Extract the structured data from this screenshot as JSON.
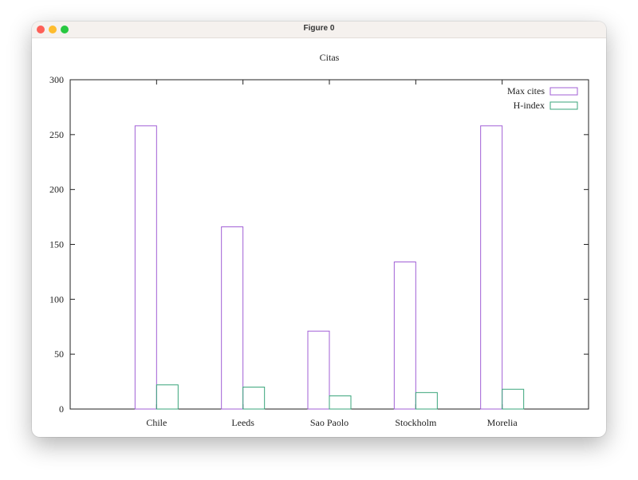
{
  "window": {
    "title": "Figure 0"
  },
  "colors": {
    "max_cites": "#a15fd6",
    "h_index": "#3aa57b",
    "axis": "#222222"
  },
  "chart_data": {
    "type": "bar",
    "title": "Citas",
    "categories": [
      "Chile",
      "Leeds",
      "Sao Paolo",
      "Stockholm",
      "Morelia"
    ],
    "series": [
      {
        "name": "Max cites",
        "values": [
          258,
          166,
          71,
          134,
          258
        ]
      },
      {
        "name": "H-index",
        "values": [
          22,
          20,
          12,
          15,
          18
        ]
      }
    ],
    "ylim": [
      0,
      300
    ],
    "yticks": [
      0,
      50,
      100,
      150,
      200,
      250,
      300
    ],
    "grid": false,
    "legend": "top-right"
  }
}
